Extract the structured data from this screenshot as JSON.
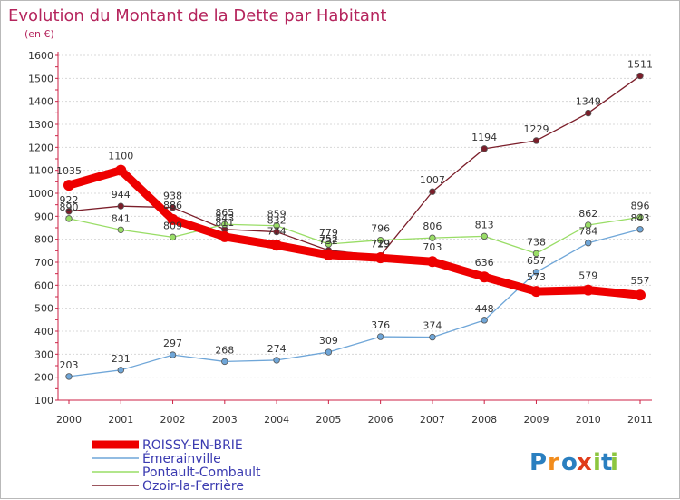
{
  "chart_data": {
    "type": "line",
    "title": "Evolution du Montant de la Dette par Habitant",
    "subtitle": "(en €)",
    "xlabel": "",
    "ylabel": "",
    "ylim": [
      100,
      1600
    ],
    "yticks": [
      100,
      200,
      300,
      400,
      500,
      600,
      700,
      800,
      900,
      1000,
      1100,
      1200,
      1300,
      1400,
      1500,
      1600
    ],
    "categories": [
      "2000",
      "2001",
      "2002",
      "2003",
      "2004",
      "2005",
      "2006",
      "2007",
      "2008",
      "2009",
      "2010",
      "2011"
    ],
    "grid": "horizontal",
    "legend_position": "bottom-left",
    "series": [
      {
        "name": "Ozoir-la-Ferrière",
        "color": "#7b1e2a",
        "values": [
          922,
          944,
          938,
          843,
          832,
          752,
          729,
          1007,
          1194,
          1229,
          1349,
          1511
        ]
      },
      {
        "name": "Pontault-Combault",
        "color": "#99dd66",
        "values": [
          890,
          841,
          809,
          865,
          859,
          779,
          796,
          806,
          813,
          738,
          862,
          896
        ]
      },
      {
        "name": "Émerainville",
        "color": "#6fa6d8",
        "values": [
          203,
          231,
          297,
          268,
          274,
          309,
          376,
          374,
          448,
          657,
          784,
          843
        ]
      },
      {
        "name": "ROISSY-EN-BRIE",
        "color": "#ee0000",
        "values": [
          1035,
          1100,
          886,
          811,
          774,
          732,
          719,
          703,
          636,
          573,
          579,
          557
        ]
      }
    ]
  },
  "legend": {
    "items": [
      {
        "label": "ROISSY-EN-BRIE",
        "color": "#ee0000"
      },
      {
        "label": "Émerainville",
        "color": "#6fa6d8"
      },
      {
        "label": "Pontault-Combault",
        "color": "#99dd66"
      },
      {
        "label": "Ozoir-la-Ferrière",
        "color": "#7b1e2a"
      }
    ]
  },
  "logo": {
    "text": "Proxiti",
    "colors": [
      "#2a7fc0",
      "#f28c1c",
      "#2a7fc0",
      "#e03c1a",
      "#8cc63f",
      "#2a7fc0",
      "#8cc63f"
    ]
  }
}
